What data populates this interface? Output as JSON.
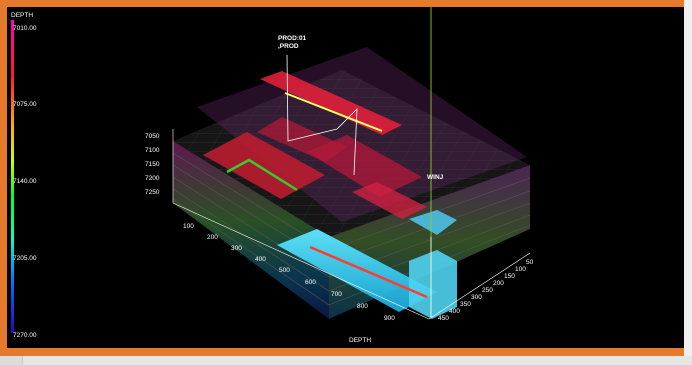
{
  "colorbar": {
    "title": "DEPTH",
    "labels": [
      "7010.00",
      "7075.00",
      "7140.00",
      "7205.00",
      "7270.00"
    ]
  },
  "axes": {
    "z_ticks": [
      "7050",
      "7100",
      "7150",
      "7200",
      "7250"
    ],
    "x_ticks": [
      "100",
      "200",
      "300",
      "400",
      "500",
      "600",
      "700",
      "800",
      "900"
    ],
    "y_ticks": [
      "50",
      "100",
      "150",
      "200",
      "250",
      "300",
      "350",
      "400",
      "450"
    ],
    "x_label": "DEPTH"
  },
  "wells": {
    "producer_line1": "PROD:01",
    "producer_line2": ",PROD",
    "injector": "WINJ"
  },
  "colors": {
    "frame": "#e67a2c",
    "background": "#000000",
    "producer_trace": "#ffff66",
    "injector_trace": "#7fe01f",
    "completion_green": "#33cc33",
    "completion_red": "#ff3b2f"
  }
}
